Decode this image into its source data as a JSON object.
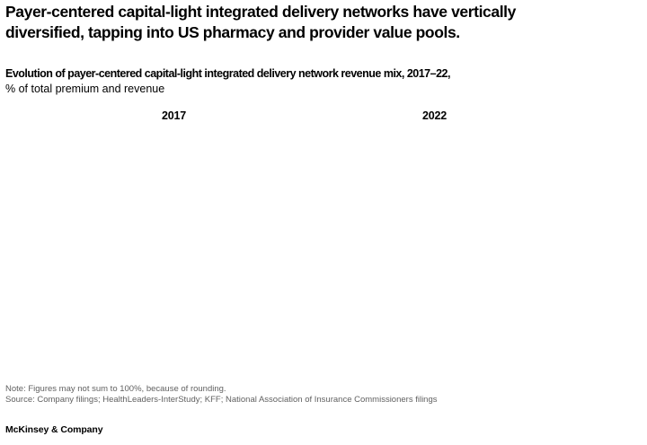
{
  "page": {
    "background": "#ffffff"
  },
  "title": {
    "line1": "Payer-centered capital-light integrated delivery networks have vertically",
    "line2": "diversified, tapping into US pharmacy and provider value pools."
  },
  "exhibit": {
    "heading_bold": "Evolution of payer-centered capital-light integrated delivery network revenue mix, 2017–22,",
    "heading_unit": "% of total premium and revenue",
    "column_labels": [
      {
        "label": "2017"
      },
      {
        "label": "2022"
      }
    ]
  },
  "chart_data": {
    "type": "bar",
    "title": "Evolution of payer-centered capital-light integrated delivery network revenue mix, 2017–22",
    "ylabel": "% of total premium and revenue",
    "categories": [
      "2017",
      "2022"
    ],
    "series": [],
    "layout": "two-column comparison by year; plot area is blank/unrendered in the screenshot — only the year column headers are visible, no bars, segment values, or legend"
  },
  "footnotes": {
    "note": "Note: Figures may not sum to 100%, because of rounding.",
    "source": "Source: Company filings; HealthLeaders-InterStudy; KFF; National Association of Insurance Commissioners filings"
  },
  "footer": {
    "brand": "McKinsey & Company"
  },
  "colors": {
    "text": "#000000",
    "footnote_gray": "#616161",
    "background": "#ffffff"
  }
}
